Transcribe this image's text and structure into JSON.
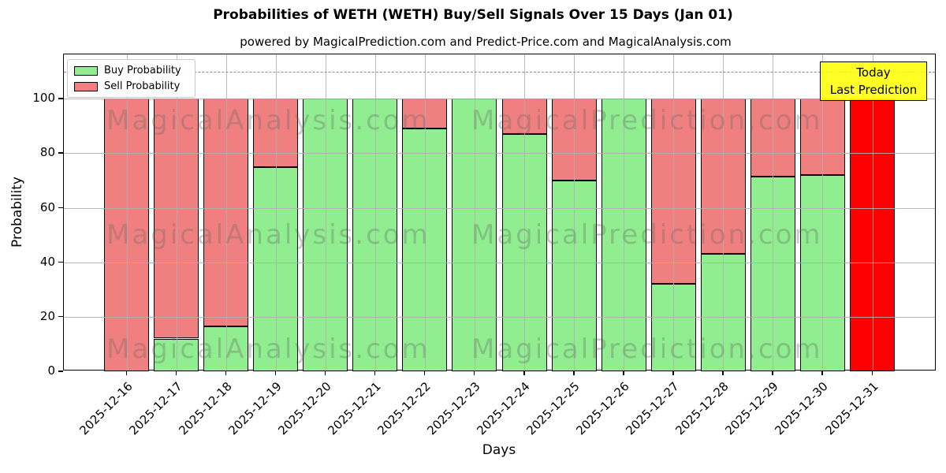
{
  "header": {
    "title": "Probabilities of WETH (WETH) Buy/Sell Signals Over 15 Days (Jan 01)",
    "subtitle": "powered by MagicalPrediction.com and Predict-Price.com and MagicalAnalysis.com"
  },
  "chart_data": {
    "type": "bar",
    "stacked": true,
    "title": "Probabilities of WETH (WETH) Buy/Sell Signals Over 15 Days (Jan 01)",
    "subtitle": "powered by MagicalPrediction.com and Predict-Price.com and MagicalAnalysis.com",
    "xlabel": "Days",
    "ylabel": "Probability",
    "categories": [
      "2025-12-16",
      "2025-12-17",
      "2025-12-18",
      "2025-12-19",
      "2025-12-20",
      "2025-12-21",
      "2025-12-22",
      "2025-12-23",
      "2025-12-24",
      "2025-12-25",
      "2025-12-26",
      "2025-12-27",
      "2025-12-28",
      "2025-12-29",
      "2025-12-30",
      "2025-12-31"
    ],
    "series": [
      {
        "name": "Buy Probability",
        "color": "#90ee90",
        "values": [
          0,
          12,
          16.5,
          75,
          100,
          100,
          89,
          100,
          87,
          70,
          100,
          32,
          43,
          71.5,
          72,
          0
        ]
      },
      {
        "name": "Sell Probability",
        "color": "#f08080",
        "values": [
          100,
          88,
          83.5,
          25,
          0,
          0,
          11,
          0,
          13,
          30,
          0,
          68,
          57,
          28.5,
          28,
          100
        ]
      }
    ],
    "today_bar": {
      "index": 15,
      "color": "#ff0000"
    },
    "ylim": [
      0,
      116
    ],
    "yticks": [
      0,
      20,
      40,
      60,
      80,
      100
    ],
    "dashed_line_y": 110,
    "grid": true,
    "legend_position": "upper-left"
  },
  "legend": {
    "items": [
      {
        "label": "Buy Probability",
        "color": "#90ee90"
      },
      {
        "label": "Sell Probability",
        "color": "#f08080"
      }
    ]
  },
  "annotation_box": {
    "line1": "Today",
    "line2": "Last Prediction",
    "bg_color": "#ffff00"
  },
  "watermarks": {
    "left": "MagicalAnalysis.com",
    "right": "MagicalPrediction.com"
  },
  "colors": {
    "buy": "#90ee90",
    "sell": "#f08080",
    "today": "#ff0000",
    "grid": "#b0b0b0",
    "edge": "#000000"
  }
}
